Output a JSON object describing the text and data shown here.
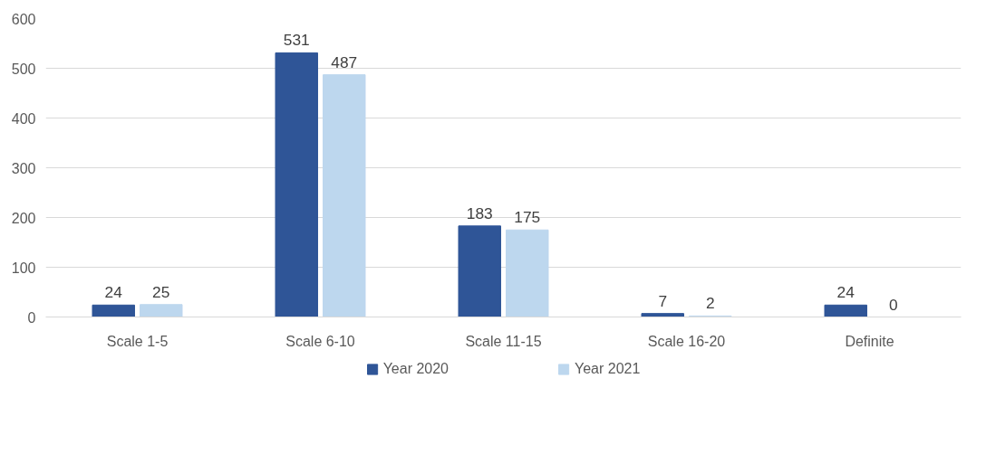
{
  "chart_data": {
    "type": "bar",
    "categories": [
      "Scale 1-5",
      "Scale 6-10",
      "Scale 11-15",
      "Scale 16-20",
      "Definite"
    ],
    "series": [
      {
        "name": "Year 2020",
        "color": "#2f5597",
        "values": [
          24,
          531,
          183,
          7,
          24
        ]
      },
      {
        "name": "Year 2021",
        "color": "#bdd7ee",
        "values": [
          25,
          487,
          175,
          2,
          0
        ]
      }
    ],
    "ylim": [
      0,
      600
    ],
    "yticks": [
      0,
      100,
      200,
      300,
      400,
      500,
      600
    ],
    "grid": "y",
    "legend": "bottom",
    "data_labels": true
  }
}
